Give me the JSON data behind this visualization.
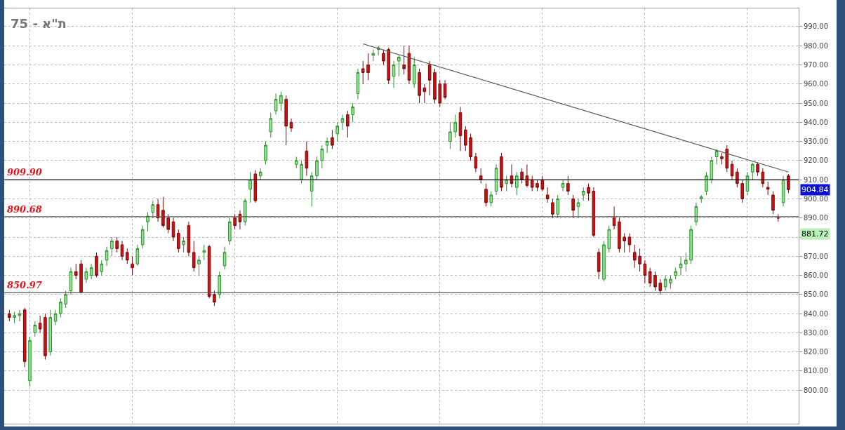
{
  "chart_data": {
    "type": "candlestick",
    "title": "ת\"א - 75",
    "categories": [
      null,
      null,
      null,
      null,
      null,
      null,
      null,
      null,
      null,
      null,
      null,
      null,
      null,
      null,
      null,
      null,
      null,
      null,
      null,
      null,
      null,
      null,
      null,
      null,
      null,
      null,
      null,
      null,
      null,
      null,
      null,
      null,
      null,
      null,
      null,
      null,
      null,
      null,
      null,
      null,
      null,
      null,
      null,
      null,
      null,
      null,
      null,
      null,
      null,
      null,
      null,
      null,
      null,
      null,
      null,
      null,
      null,
      null,
      null,
      null,
      null,
      null,
      null,
      null,
      null,
      null,
      null,
      null,
      null,
      null,
      null,
      null,
      null,
      null,
      null,
      null,
      null,
      null,
      null,
      null,
      null,
      null,
      null,
      null,
      null,
      null,
      null,
      null,
      null,
      null,
      null,
      null,
      null,
      null,
      null,
      null,
      null,
      null,
      null,
      null,
      null,
      null,
      null,
      null,
      null,
      null,
      null,
      null,
      null,
      null,
      null,
      null,
      null,
      null,
      null,
      null,
      null,
      null,
      null,
      null,
      null,
      null,
      null,
      null,
      null,
      null,
      null,
      null,
      null,
      null,
      null,
      null,
      null,
      null,
      null,
      null,
      null,
      null,
      null,
      null,
      null,
      null,
      null,
      null,
      null,
      null,
      null,
      null,
      null,
      null,
      null,
      null,
      null
    ],
    "ohlc": [
      [
        840,
        842,
        836,
        838
      ],
      [
        838,
        841,
        835,
        839
      ],
      [
        839,
        842,
        836,
        840
      ],
      [
        842,
        843,
        812,
        815
      ],
      [
        805,
        828,
        802,
        826
      ],
      [
        830,
        836,
        828,
        834
      ],
      [
        835,
        839,
        830,
        832
      ],
      [
        838,
        840,
        816,
        818
      ],
      [
        820,
        842,
        818,
        838
      ],
      [
        836,
        842,
        834,
        840
      ],
      [
        840,
        848,
        838,
        846
      ],
      [
        845,
        852,
        843,
        850
      ],
      [
        852,
        864,
        850,
        862
      ],
      [
        862,
        866,
        858,
        860
      ],
      [
        866,
        868,
        851,
        851
      ],
      [
        858,
        864,
        856,
        862
      ],
      [
        860,
        866,
        858,
        864
      ],
      [
        870,
        872,
        859,
        860
      ],
      [
        862,
        868,
        860,
        866
      ],
      [
        868,
        875,
        865,
        873
      ],
      [
        874,
        880,
        870,
        878
      ],
      [
        878,
        880,
        872,
        874
      ],
      [
        876,
        878,
        868,
        870
      ],
      [
        872,
        874,
        866,
        868
      ],
      [
        866,
        870,
        860,
        864
      ],
      [
        866,
        876,
        865,
        874
      ],
      [
        876,
        886,
        874,
        884
      ],
      [
        888,
        893,
        883,
        891
      ],
      [
        893,
        899,
        890,
        897
      ],
      [
        897,
        900,
        888,
        890
      ],
      [
        894,
        901,
        885,
        886
      ],
      [
        890,
        892,
        882,
        884
      ],
      [
        888,
        890,
        878,
        880
      ],
      [
        882,
        884,
        872,
        874
      ],
      [
        876,
        880,
        872,
        878
      ],
      [
        886,
        888,
        870,
        872
      ],
      [
        872,
        878,
        862,
        864
      ],
      [
        866,
        870,
        860,
        868
      ],
      [
        872,
        876,
        868,
        873
      ],
      [
        875,
        876,
        848,
        849
      ],
      [
        850,
        852,
        844,
        846
      ],
      [
        850,
        862,
        848,
        860
      ],
      [
        865,
        875,
        863,
        872
      ],
      [
        878,
        890,
        876,
        888
      ],
      [
        890,
        892,
        884,
        886
      ],
      [
        892,
        894,
        884,
        888
      ],
      [
        888,
        900,
        886,
        899
      ],
      [
        905,
        914,
        898,
        910
      ],
      [
        913,
        915,
        898,
        899
      ],
      [
        912,
        916,
        910,
        914
      ],
      [
        920,
        930,
        918,
        928
      ],
      [
        935,
        945,
        932,
        942
      ],
      [
        946,
        955,
        944,
        952
      ],
      [
        950,
        956,
        946,
        954
      ],
      [
        952,
        954,
        928,
        938
      ],
      [
        940,
        942,
        935,
        937
      ],
      [
        918,
        922,
        916,
        920
      ],
      [
        910,
        920,
        908,
        918
      ],
      [
        925,
        930,
        912,
        916
      ],
      [
        904,
        914,
        896,
        912
      ],
      [
        912,
        922,
        910,
        920
      ],
      [
        920,
        928,
        916,
        926
      ],
      [
        928,
        932,
        924,
        930
      ],
      [
        932,
        936,
        926,
        928
      ],
      [
        934,
        940,
        930,
        938
      ],
      [
        940,
        944,
        936,
        942
      ],
      [
        944,
        946,
        932,
        938
      ],
      [
        944,
        950,
        940,
        948
      ],
      [
        955,
        968,
        952,
        966
      ],
      [
        968,
        972,
        960,
        966
      ],
      [
        970,
        976,
        962,
        966
      ],
      [
        975,
        978,
        972,
        976
      ],
      [
        978,
        980,
        975,
        979
      ],
      [
        976,
        978,
        970,
        972
      ],
      [
        978,
        979,
        960,
        962
      ],
      [
        964,
        972,
        958,
        970
      ],
      [
        972,
        975,
        964,
        974
      ],
      [
        970,
        980,
        965,
        968
      ],
      [
        976,
        980,
        960,
        962
      ],
      [
        960,
        974,
        958,
        970
      ],
      [
        966,
        968,
        950,
        954
      ],
      [
        958,
        960,
        950,
        956
      ],
      [
        970,
        972,
        954,
        962
      ],
      [
        966,
        968,
        950,
        952
      ],
      [
        960,
        962,
        948,
        950
      ],
      [
        960,
        962,
        952,
        953
      ],
      [
        930,
        940,
        926,
        935
      ],
      [
        935,
        944,
        932,
        940
      ],
      [
        945,
        948,
        925,
        933
      ],
      [
        936,
        938,
        925,
        928
      ],
      [
        932,
        934,
        920,
        922
      ],
      [
        922,
        924,
        914,
        916
      ],
      [
        912,
        916,
        908,
        910
      ],
      [
        905,
        908,
        896,
        898
      ],
      [
        898,
        904,
        896,
        902
      ],
      [
        904,
        918,
        902,
        916
      ],
      [
        922,
        924,
        904,
        906
      ],
      [
        908,
        912,
        904,
        910
      ],
      [
        912,
        918,
        906,
        908
      ],
      [
        906,
        914,
        902,
        912
      ],
      [
        914,
        916,
        908,
        910
      ],
      [
        912,
        918,
        906,
        907
      ],
      [
        910,
        912,
        904,
        906
      ],
      [
        908,
        910,
        904,
        906
      ],
      [
        910,
        912,
        904,
        905
      ],
      [
        902,
        906,
        898,
        900
      ],
      [
        898,
        900,
        890,
        892
      ],
      [
        892,
        902,
        890,
        900
      ],
      [
        906,
        910,
        904,
        908
      ],
      [
        908,
        912,
        902,
        904
      ],
      [
        900,
        902,
        890,
        894
      ],
      [
        896,
        900,
        890,
        898
      ],
      [
        902,
        906,
        899,
        904
      ],
      [
        906,
        908,
        899,
        903
      ],
      [
        904,
        906,
        880,
        881
      ],
      [
        872,
        874,
        858,
        862
      ],
      [
        858,
        878,
        857,
        876
      ],
      [
        874,
        886,
        872,
        884
      ],
      [
        890,
        896,
        884,
        886
      ],
      [
        888,
        890,
        872,
        874
      ],
      [
        880,
        882,
        872,
        878
      ],
      [
        880,
        882,
        872,
        876
      ],
      [
        872,
        876,
        864,
        868
      ],
      [
        870,
        874,
        862,
        866
      ],
      [
        866,
        868,
        856,
        860
      ],
      [
        862,
        864,
        854,
        856
      ],
      [
        860,
        862,
        852,
        854
      ],
      [
        856,
        858,
        850,
        852
      ],
      [
        854,
        860,
        852,
        858
      ],
      [
        856,
        860,
        853,
        858
      ],
      [
        860,
        864,
        858,
        862
      ],
      [
        864,
        870,
        860,
        866
      ],
      [
        866,
        872,
        862,
        868
      ],
      [
        868,
        886,
        866,
        884
      ],
      [
        888,
        898,
        886,
        896
      ],
      [
        900,
        902,
        898,
        901
      ],
      [
        904,
        914,
        902,
        912
      ],
      [
        910,
        922,
        908,
        920
      ],
      [
        922,
        926,
        918,
        925
      ],
      [
        922,
        924,
        918,
        921
      ],
      [
        926,
        928,
        914,
        916
      ],
      [
        918,
        920,
        910,
        912
      ],
      [
        914,
        916,
        906,
        908
      ],
      [
        908,
        910,
        898,
        900
      ],
      [
        904,
        914,
        902,
        912
      ],
      [
        914,
        919,
        910,
        918
      ],
      [
        918,
        919,
        912,
        914
      ],
      [
        914,
        916,
        906,
        908
      ],
      [
        906,
        909,
        902,
        905
      ],
      [
        902,
        904,
        892,
        894
      ],
      [
        890,
        892,
        888,
        890
      ],
      [
        898,
        912,
        896,
        910
      ],
      [
        912,
        913,
        903,
        904.84
      ]
    ],
    "series": [
      {
        "type": "line",
        "values": [
          null,
          null,
          null,
          null,
          null,
          null,
          null,
          null,
          null,
          null,
          null,
          null,
          null,
          null,
          null,
          null,
          null,
          null,
          null,
          null,
          null,
          null,
          null,
          null,
          null,
          null,
          null,
          null,
          null,
          null,
          null,
          null,
          null,
          null,
          null,
          null,
          null,
          null,
          null,
          null,
          null,
          null,
          null,
          null,
          null,
          null,
          null,
          null,
          null,
          null,
          null,
          null,
          null,
          null,
          null,
          null,
          null,
          null,
          null,
          null,
          null,
          null,
          null,
          null,
          null,
          null,
          null,
          null,
          null,
          981,
          null,
          null,
          null,
          null,
          null,
          null,
          null,
          null,
          null,
          null,
          null,
          null,
          null,
          null,
          null,
          null,
          null,
          null,
          null,
          null,
          null,
          null,
          null,
          null,
          null,
          null,
          null,
          null,
          null,
          null,
          null,
          null,
          null,
          null,
          null,
          null,
          null,
          null,
          null,
          null,
          null,
          null,
          null,
          null,
          null,
          null,
          null,
          null,
          null,
          null,
          null,
          null,
          null,
          null,
          null,
          null,
          null,
          null,
          null,
          null,
          null,
          null,
          null,
          null,
          null,
          null,
          null,
          null,
          null,
          null,
          null,
          null,
          null,
          null,
          null,
          null,
          null,
          null,
          null,
          null,
          null,
          null,
          914
        ],
        "color": "#555555"
      }
    ],
    "ylim": [
      782.5,
      999.5
    ],
    "yticks": [
      {
        "value": 800,
        "label": "800.00"
      },
      {
        "value": 810,
        "label": "810.00"
      },
      {
        "value": 820,
        "label": "820.00"
      },
      {
        "value": 830,
        "label": "830.00"
      },
      {
        "value": 840,
        "label": "840.00"
      },
      {
        "value": 850,
        "label": "850.00"
      },
      {
        "value": 860,
        "label": "860.00"
      },
      {
        "value": 870,
        "label": "870.00"
      },
      {
        "value": 880,
        "label": null
      },
      {
        "value": 890,
        "label": "890.00"
      },
      {
        "value": 900,
        "label": "900.00"
      },
      {
        "value": 910,
        "label": "910.00"
      },
      {
        "value": 920,
        "label": "920.00"
      },
      {
        "value": 930,
        "label": "930.00"
      },
      {
        "value": 940,
        "label": "940.00"
      },
      {
        "value": 950,
        "label": "950.00"
      },
      {
        "value": 960,
        "label": "960.00"
      },
      {
        "value": 970,
        "label": "970.00"
      },
      {
        "value": 980,
        "label": "980.00"
      },
      {
        "value": 990,
        "label": "990.00"
      }
    ],
    "ref_lines": [
      {
        "axis": "y",
        "value": 909.9,
        "label": "909.90",
        "color": "#000000"
      },
      {
        "axis": "y",
        "value": 890.68,
        "label": "890.68",
        "color": "#555555"
      },
      {
        "axis": "y",
        "value": 850.97,
        "label": "850.97",
        "color": "#555555"
      }
    ],
    "annotations": [
      {
        "text": "904.84",
        "y": 904.84
      },
      {
        "text": "881.72",
        "y": 881.72
      }
    ],
    "grid": true
  }
}
